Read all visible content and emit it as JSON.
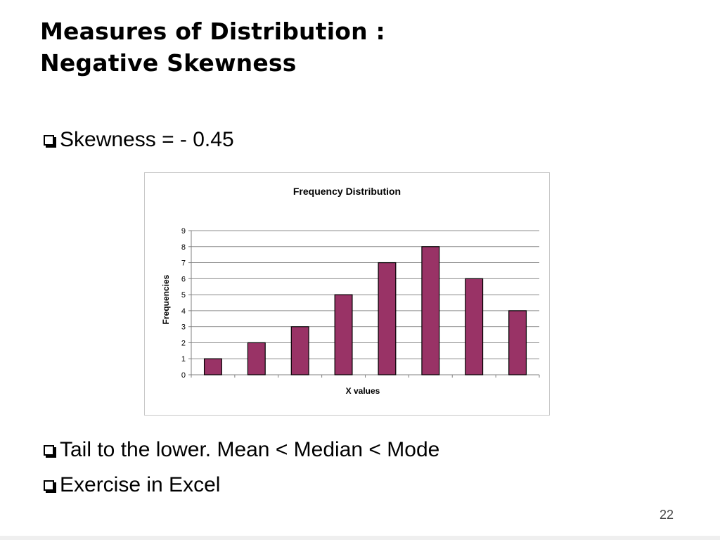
{
  "slide": {
    "title_line1": "Measures of Distribution :",
    "title_line2": "Negative Skewness",
    "bullets": [
      "Skewness = - 0.45",
      "Tail to the lower. Mean < Median < Mode",
      "Exercise in Excel"
    ],
    "bullet_icon": "hollow-square-bullet-icon",
    "page_number": "22"
  },
  "chart_data": {
    "type": "bar",
    "title": "Frequency Distribution",
    "xlabel": "X values",
    "ylabel": "Frequencies",
    "categories": [
      "",
      "",
      "",
      "",
      "",
      "",
      "",
      ""
    ],
    "values": [
      1,
      2,
      3,
      5,
      7,
      8,
      6,
      4
    ],
    "ylim": [
      0,
      9
    ],
    "yticks": [
      "0",
      "1",
      "2",
      "3",
      "4",
      "5",
      "6",
      "7",
      "8",
      "9"
    ],
    "grid": true,
    "legend": "none",
    "bar_color": "#993366"
  }
}
